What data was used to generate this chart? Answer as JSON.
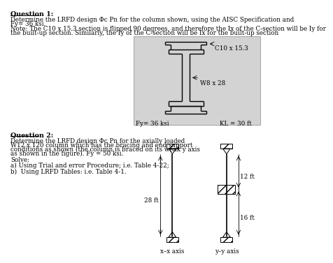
{
  "q1_title": "Question 1:",
  "q1_line1": "Determine the LRFD design Φc Pn for the column shown, using the AISC Specification and",
  "q1_line2": "Fy= 36 ksi.",
  "q1_note1": "Note: The C10 x 15.3 section is flipped 90 degrees, and therefore the Ix of the C-section will be Iy for",
  "q1_note2": "the built-up section. Similarly, the Iy of the C-section will be Ix for the built-up section",
  "label_c10": "C10 x 15.3",
  "label_w8": "W8 x 28",
  "label_fy": "Fy= 36 ksi",
  "label_kl": "KL = 30 ft",
  "q2_title": "Question 2:",
  "q2_line1": "Determine the LRFD design Φc Pn for the axially loaded",
  "q2_line2": "W12 x 120 column which has the bracing and end support",
  "q2_line3": "conditions as shown (the column is braced on its weak y axis",
  "q2_line4": "as shown in the figure). Fy = 50 ksi.",
  "q2_solve": "Solve:",
  "q2_a": "a) Using Trial and error Procedure; i.e. Table 4-22;",
  "q2_b": "b)  Using LRFD Tables: i.e. Table 4-1.",
  "label_28ft": "28 ft",
  "label_12ft": "12 ft",
  "label_16ft": "16 ft",
  "label_xx": "x–x axis",
  "label_yy": "y–y axis",
  "gray_fc": "#d3d3d3",
  "white": "#ffffff",
  "black": "#000000"
}
